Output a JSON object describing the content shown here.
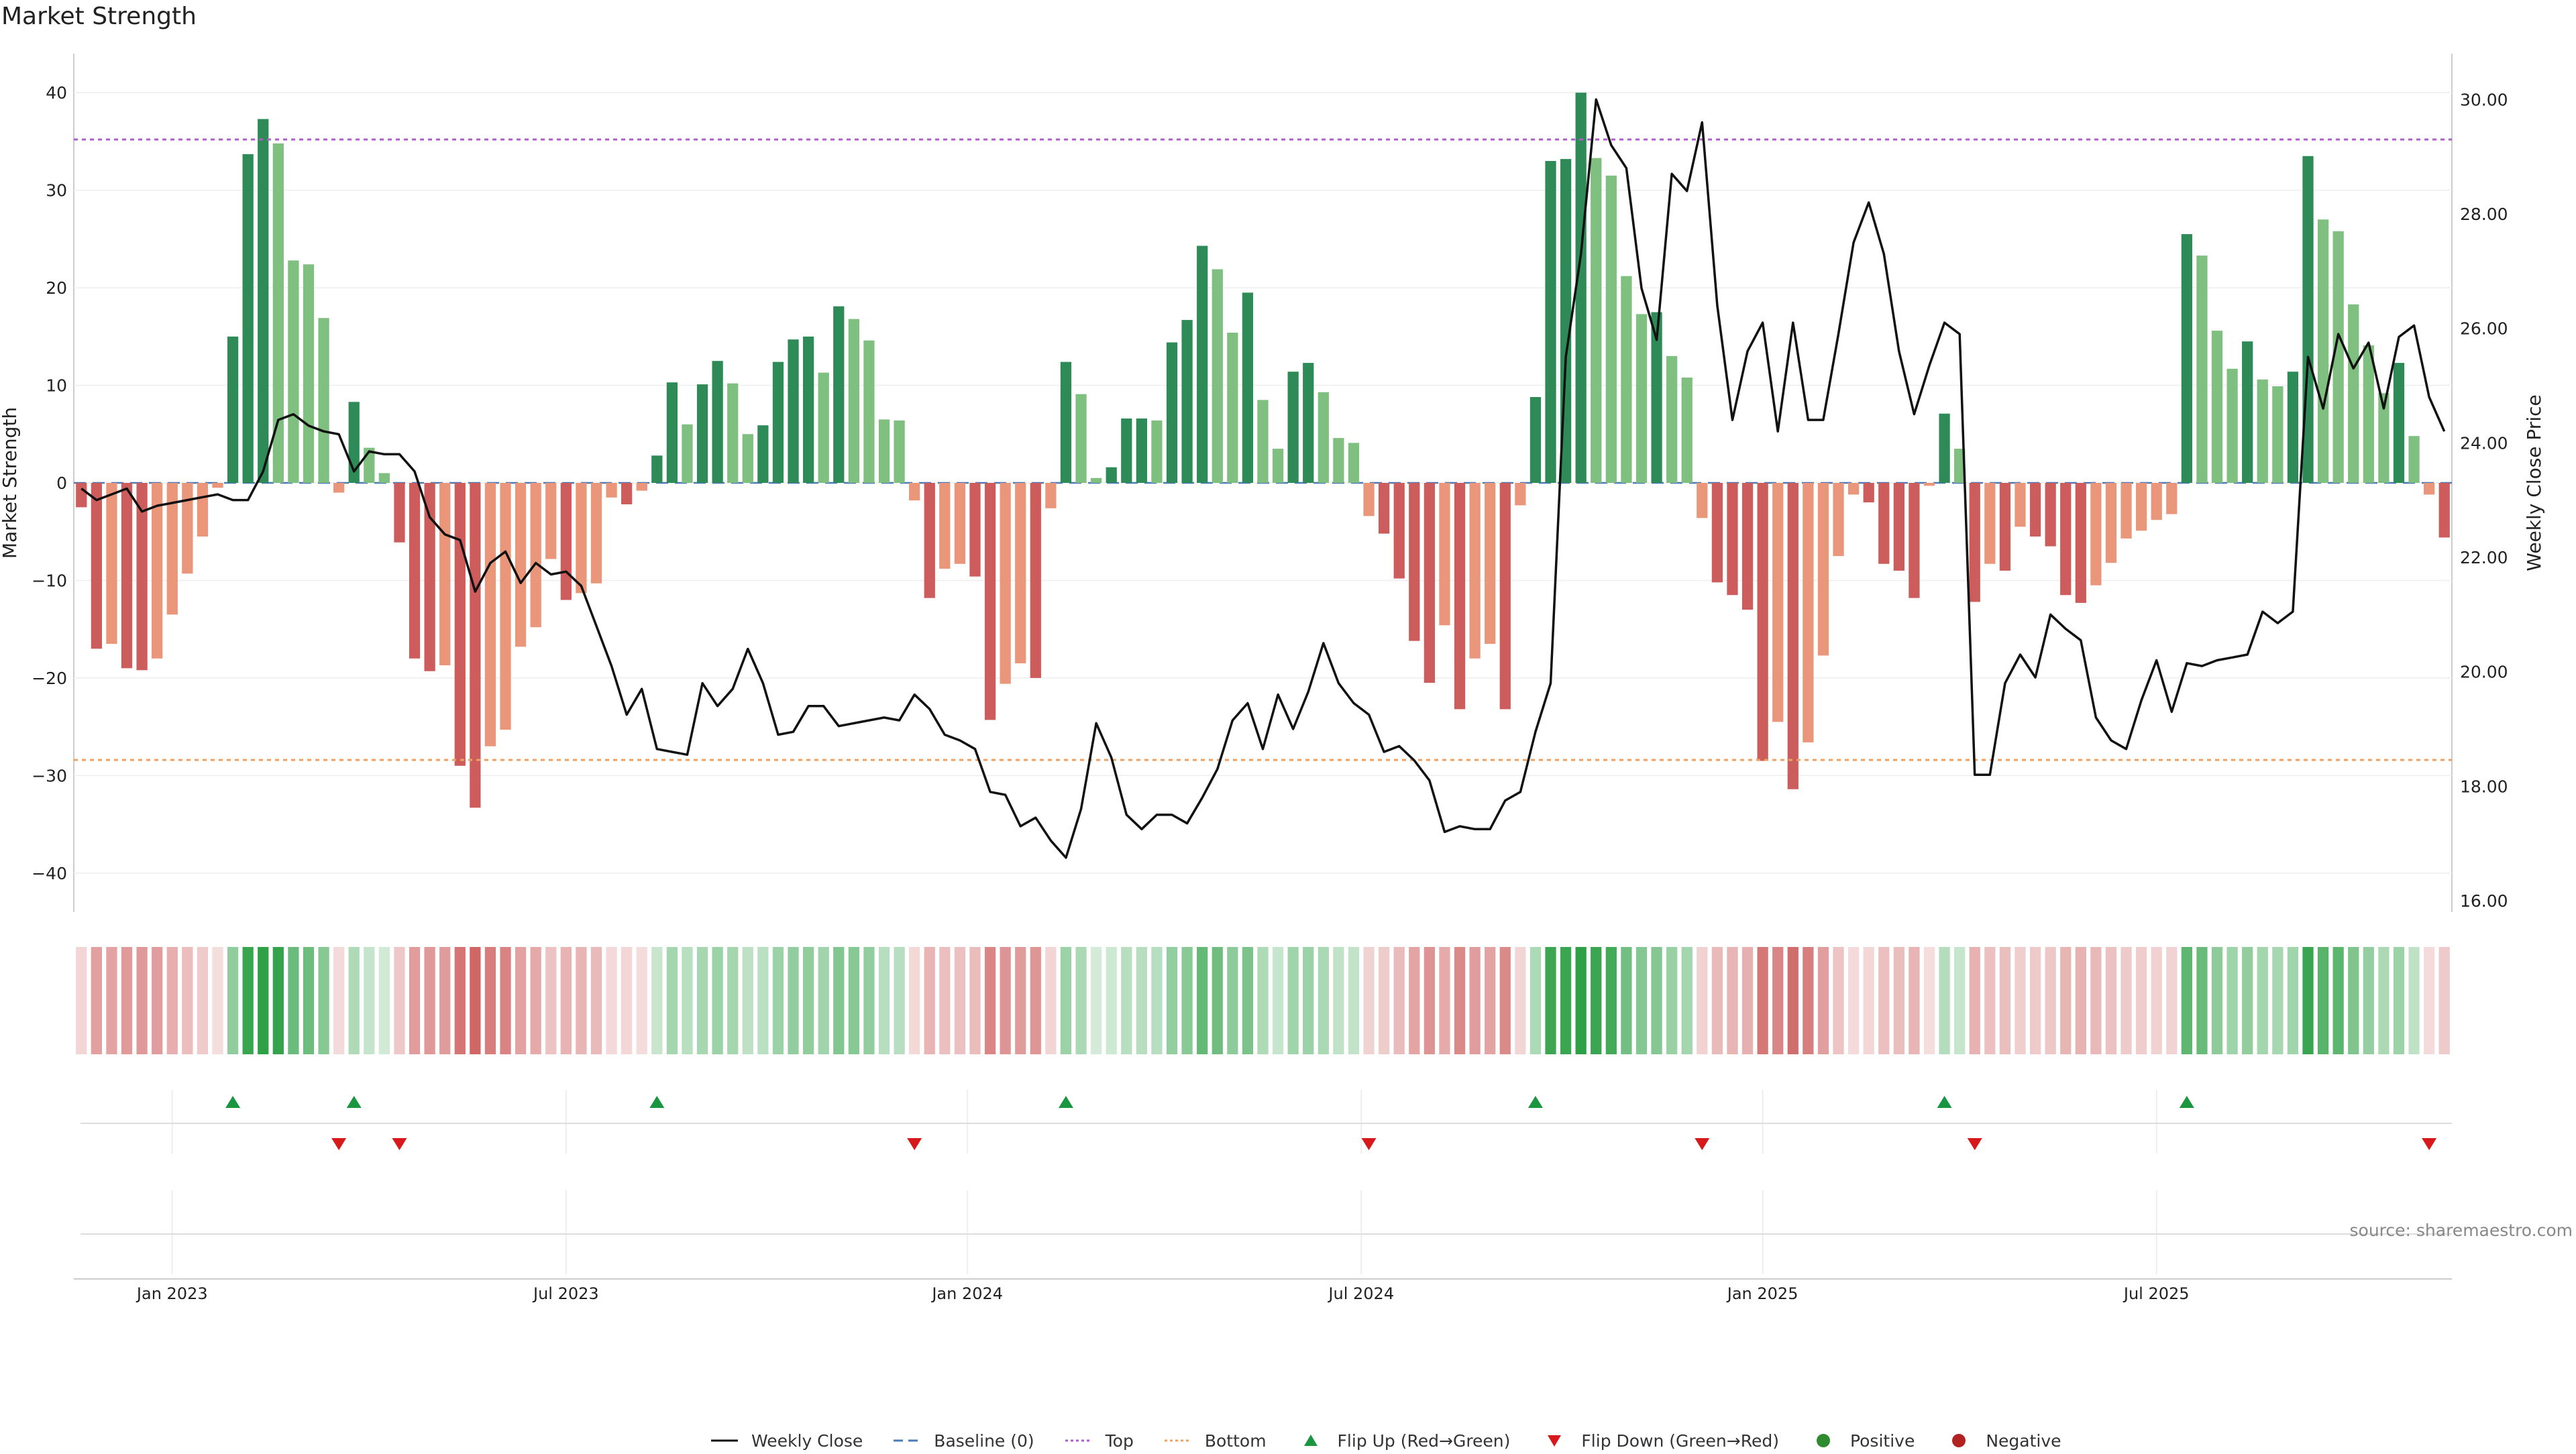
{
  "chart_data": {
    "type": "bar",
    "title": "Market Strength",
    "ylabel": "Market Strength",
    "y2label": "Weekly Close Price",
    "ylim": [
      -44,
      44
    ],
    "y2lim": [
      15.8,
      30.8
    ],
    "yticks": [
      -40,
      -30,
      -20,
      -10,
      0,
      10,
      20,
      30,
      40
    ],
    "y2ticks": [
      "16.00",
      "18.00",
      "20.00",
      "22.00",
      "24.00",
      "26.00",
      "28.00",
      "30.00"
    ],
    "xtick_labels": [
      "Jan 2023",
      "Jul 2023",
      "Jan 2024",
      "Jul 2024",
      "Jan 2025",
      "Jul 2025"
    ],
    "top_threshold": 35.2,
    "bottom_threshold": -28.4,
    "strength": [
      -2.5,
      -17,
      -16.5,
      -19,
      -19.2,
      -18,
      -13.5,
      -9.3,
      -5.5,
      -0.5,
      15,
      33.7,
      37.3,
      34.8,
      22.8,
      22.4,
      16.9,
      -1,
      8.3,
      3.6,
      1,
      -6.1,
      -18,
      -19.3,
      -18.7,
      -29,
      -33.3,
      -27,
      -25.3,
      -16.8,
      -14.8,
      -7.8,
      -12,
      -11.3,
      -10.3,
      -1.5,
      -2.2,
      -0.8,
      2.8,
      10.3,
      6,
      10.1,
      12.5,
      10.2,
      5,
      5.9,
      12.4,
      14.7,
      15,
      11.3,
      18.1,
      16.8,
      14.6,
      6.5,
      6.4,
      -1.8,
      -11.8,
      -8.8,
      -8.3,
      -9.6,
      -24.3,
      -20.6,
      -18.5,
      -20,
      -2.6,
      12.4,
      9.1,
      0.5,
      1.6,
      6.6,
      6.6,
      6.4,
      14.4,
      16.7,
      24.3,
      21.9,
      15.4,
      19.5,
      8.5,
      3.5,
      11.4,
      12.3,
      9.3,
      4.6,
      4.1,
      -3.4,
      -5.2,
      -9.8,
      -16.2,
      -20.5,
      -14.6,
      -23.2,
      -18,
      -16.5,
      -23.2,
      -2.3,
      8.8,
      33,
      33.2,
      40,
      33.3,
      31.5,
      21.2,
      17.3,
      17.5,
      13,
      10.8,
      -3.6,
      -10.2,
      -11.5,
      -13,
      -28.5,
      -24.5,
      -31.4,
      -26.6,
      -17.7,
      -7.5,
      -1.2,
      -2,
      -8.3,
      -9,
      -11.8,
      -0.3,
      7.1,
      3.5,
      -12.2,
      -8.3,
      -9,
      -4.5,
      -5.5,
      -6.5,
      -11.5,
      -12.3,
      -10.5,
      -8.2,
      -5.7,
      -4.9,
      -3.8,
      -3.2,
      25.5,
      23.3,
      15.6,
      11.7,
      14.5,
      10.6,
      9.9,
      11.4,
      33.5,
      27,
      25.8,
      18.3,
      14.1,
      9.2,
      12.3,
      4.8,
      -1.2,
      -5.6
    ],
    "weekly_close": [
      23.2,
      23,
      23.1,
      23.2,
      22.8,
      22.9,
      22.95,
      23,
      23.05,
      23.1,
      23,
      23,
      23.5,
      24.4,
      24.5,
      24.3,
      24.2,
      24.15,
      23.5,
      23.85,
      23.8,
      23.8,
      23.5,
      22.7,
      22.4,
      22.3,
      21.4,
      21.9,
      22.1,
      21.55,
      21.9,
      21.7,
      21.75,
      21.5,
      20.8,
      20.1,
      19.25,
      19.7,
      18.65,
      18.6,
      18.55,
      19.8,
      19.4,
      19.7,
      20.4,
      19.8,
      18.9,
      18.95,
      19.4,
      19.4,
      19.05,
      19.1,
      19.15,
      19.2,
      19.15,
      19.6,
      19.35,
      18.9,
      18.8,
      18.65,
      17.9,
      17.85,
      17.3,
      17.45,
      17.05,
      16.75,
      17.6,
      19.1,
      18.5,
      17.5,
      17.25,
      17.5,
      17.5,
      17.35,
      17.8,
      18.3,
      19.15,
      19.45,
      18.65,
      19.6,
      19,
      19.65,
      20.5,
      19.8,
      19.45,
      19.25,
      18.6,
      18.7,
      18.45,
      18.1,
      17.2,
      17.3,
      17.25,
      17.25,
      17.75,
      17.9,
      18.95,
      19.8,
      25.5,
      27.3,
      30,
      29.2,
      28.8,
      26.7,
      25.8,
      28.7,
      28.4,
      29.6,
      26.4,
      24.4,
      25.6,
      26.1,
      24.2,
      26.1,
      24.4,
      24.4,
      25.9,
      27.5,
      28.2,
      27.3,
      25.6,
      24.5,
      25.35,
      26.1,
      25.9,
      18.2,
      18.2,
      19.8,
      20.3,
      19.9,
      21,
      20.75,
      20.55,
      19.2,
      18.8,
      18.65,
      19.5,
      20.2,
      19.3,
      20.15,
      20.1,
      20.2,
      20.25,
      20.3,
      21.05,
      20.85,
      21.05,
      25.5,
      24.6,
      25.9,
      25.3,
      25.75,
      24.6,
      25.85,
      26.05,
      24.8,
      24.2
    ]
  },
  "legend": [
    {
      "label": "Weekly Close",
      "symbol": "line",
      "color": "#111111"
    },
    {
      "label": "Baseline (0)",
      "symbol": "dashed",
      "color": "#4a7bb7"
    },
    {
      "label": "Top",
      "symbol": "dotted",
      "color": "#b05cc8"
    },
    {
      "label": "Bottom",
      "symbol": "dotted",
      "color": "#f0a060"
    },
    {
      "label": "Flip Up (Red→Green)",
      "symbol": "triangle-up",
      "color": "#1a9641"
    },
    {
      "label": "Flip Down (Green→Red)",
      "symbol": "triangle-down",
      "color": "#d7191c"
    },
    {
      "label": "Positive",
      "symbol": "circle",
      "color": "#2e8b2e"
    },
    {
      "label": "Negative",
      "symbol": "circle",
      "color": "#b22222"
    }
  ],
  "source": "source: sharemaestro.com",
  "colors": {
    "green_strong": "#2e8b57",
    "green_light": "#7fbf7f",
    "red_strong": "#cd5c5c",
    "red_light": "#e9967a",
    "top_line": "#b05cc8",
    "bottom_line": "#f0a060",
    "baseline": "#4a7bb7",
    "close_line": "#111111"
  }
}
